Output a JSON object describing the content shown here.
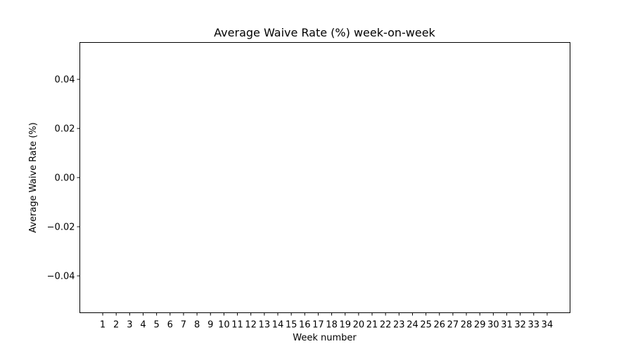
{
  "chart_data": {
    "type": "bar",
    "title": "Average Waive Rate (%) week-on-week",
    "xlabel": "Week number",
    "ylabel": "Average Waive Rate (%)",
    "categories": [
      "1",
      "2",
      "3",
      "4",
      "5",
      "6",
      "7",
      "8",
      "9",
      "10",
      "11",
      "12",
      "13",
      "14",
      "15",
      "16",
      "17",
      "18",
      "19",
      "20",
      "21",
      "22",
      "23",
      "24",
      "25",
      "26",
      "27",
      "28",
      "29",
      "30",
      "31",
      "32",
      "33",
      "34"
    ],
    "values": [
      0,
      0,
      0,
      0,
      0,
      0,
      0,
      0,
      0,
      0,
      0,
      0,
      0,
      0,
      0,
      0,
      0,
      0,
      0,
      0,
      0,
      0,
      0,
      0,
      0,
      0,
      0,
      0,
      0,
      0,
      0,
      0,
      0,
      0
    ],
    "ylim": [
      -0.055,
      0.055
    ],
    "yticks": [
      -0.04,
      -0.02,
      0.0,
      0.02,
      0.04
    ],
    "ytick_labels": [
      "−0.04",
      "−0.02",
      "0.00",
      "0.02",
      "0.04"
    ],
    "xlim": [
      -1.7,
      34.7
    ],
    "grid": false,
    "legend": "none",
    "colors": {
      "frame": "#000000",
      "bar": "#1f77b4",
      "background": "#ffffff"
    }
  }
}
